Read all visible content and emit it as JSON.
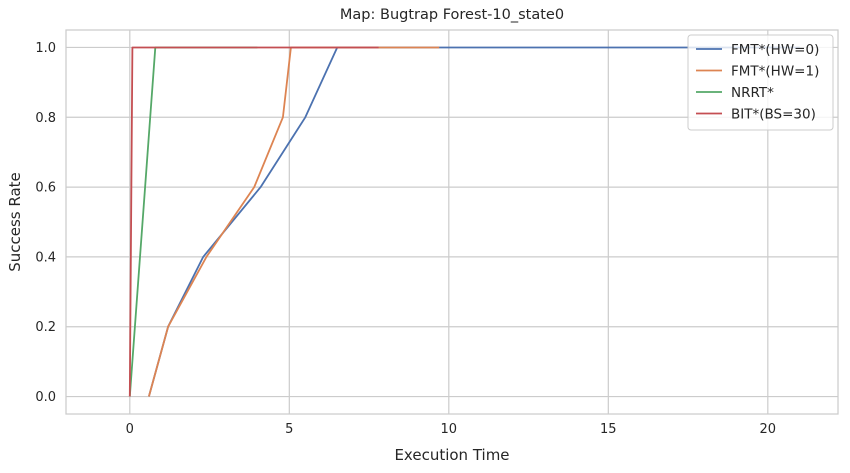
{
  "chart_data": {
    "type": "line",
    "title": "Map: Bugtrap Forest-10_state0",
    "xlabel": "Execution Time",
    "ylabel": "Success Rate",
    "xlim": [
      -2.0,
      22.2
    ],
    "ylim": [
      -0.05,
      1.05
    ],
    "xticks": [
      0,
      5,
      10,
      15,
      20
    ],
    "yticks": [
      0.0,
      0.2,
      0.4,
      0.6,
      0.8,
      1.0
    ],
    "xtick_labels": [
      "0",
      "5",
      "10",
      "15",
      "20"
    ],
    "ytick_labels": [
      "0.0",
      "0.2",
      "0.4",
      "0.6",
      "0.8",
      "1.0"
    ],
    "grid": true,
    "legend_position": "top-right",
    "series": [
      {
        "name": "FMT*(HW=0)",
        "color": "#4c72b0",
        "x": [
          0.6,
          1.2,
          2.3,
          4.1,
          5.5,
          6.5,
          21.0
        ],
        "y": [
          0.0,
          0.2,
          0.4,
          0.6,
          0.8,
          1.0,
          1.0
        ]
      },
      {
        "name": "FMT*(HW=1)",
        "color": "#dd8452",
        "x": [
          0.6,
          1.2,
          2.4,
          3.9,
          4.8,
          5.05,
          9.7
        ],
        "y": [
          0.0,
          0.2,
          0.4,
          0.6,
          0.8,
          1.0,
          1.0
        ]
      },
      {
        "name": "NRRT*",
        "color": "#55a868",
        "x": [
          0.0,
          0.8,
          4.0
        ],
        "y": [
          0.0,
          1.0,
          1.0
        ]
      },
      {
        "name": "BIT*(BS=30)",
        "color": "#c44e52",
        "x": [
          0.0,
          0.08,
          7.8
        ],
        "y": [
          0.0,
          1.0,
          1.0
        ]
      }
    ]
  }
}
